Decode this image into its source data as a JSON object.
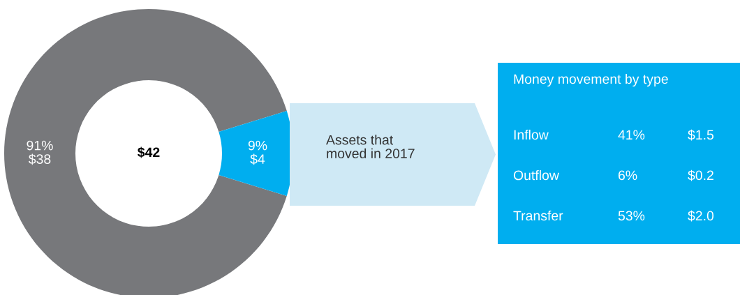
{
  "chart_data": [
    {
      "type": "donut",
      "categories": [
        null,
        null
      ],
      "values": [
        38,
        4
      ],
      "colors": [
        "#77787b",
        "#00aeef"
      ],
      "value_labels": [
        "91%\n$38",
        "9%\n$4"
      ],
      "annotations": [
        "$42",
        "Assets that\nmoved in 2017"
      ],
      "legend": false
    },
    {
      "type": "other",
      "title": "Money movement by type",
      "annotations": [
        "Inflow",
        "41%",
        "$1.5",
        "Outflow",
        "6%",
        "$0.2",
        "Transfer",
        "53%",
        "$2.0"
      ]
    }
  ]
}
